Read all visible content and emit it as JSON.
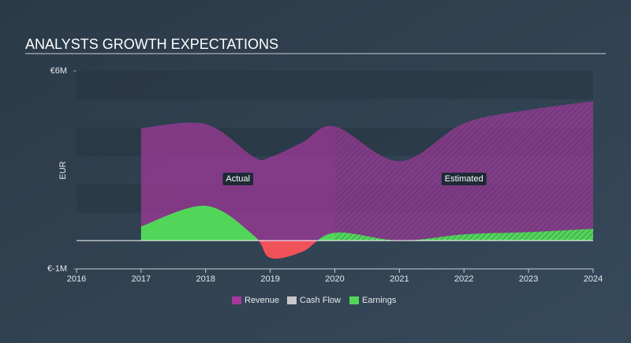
{
  "chart_data": {
    "type": "area",
    "title": "ANALYSTS GROWTH EXPECTATIONS",
    "y_label": "EUR",
    "annotations": [
      "Actual",
      "Estimated"
    ],
    "forecast_start": 2020,
    "x": [
      2017,
      2018,
      2018.75,
      2019,
      2019.5,
      2020,
      2021,
      2022,
      2023,
      2024
    ],
    "series": [
      {
        "name": "Revenue",
        "color": "#a3399c",
        "values": [
          3.98,
          4.12,
          2.95,
          2.95,
          3.48,
          4.04,
          2.81,
          4.15,
          4.62,
          4.93
        ]
      },
      {
        "name": "Cash Flow",
        "color": "#c8c8c8",
        "values": [
          null,
          null,
          null,
          null,
          null,
          null,
          null,
          null,
          null,
          null
        ]
      },
      {
        "name": "Earnings",
        "color": "#52d65a",
        "negative_color": "#f0525a",
        "values": [
          0.5,
          1.23,
          0.17,
          -0.61,
          -0.39,
          0.28,
          0.0,
          0.22,
          0.3,
          0.42
        ]
      }
    ],
    "xlim": [
      2016,
      2024
    ],
    "xticks": [
      2016,
      2017,
      2018,
      2019,
      2020,
      2021,
      2022,
      2023,
      2024
    ],
    "ylim": [
      -1,
      6
    ],
    "yticks": [
      {
        "value": -1,
        "label": "€-1M"
      },
      {
        "value": 6,
        "label": "€6M"
      }
    ]
  }
}
